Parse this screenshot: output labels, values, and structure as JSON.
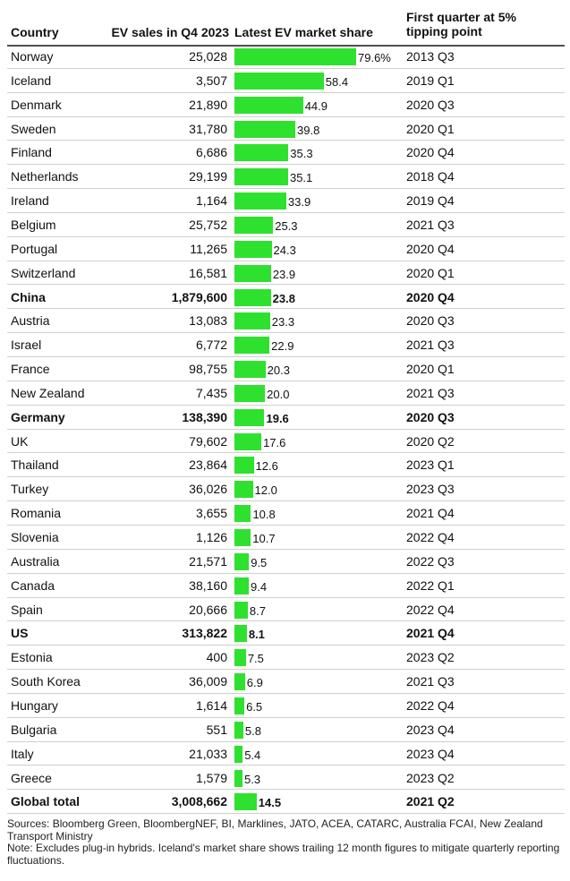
{
  "header": {
    "country": "Country",
    "sales": "EV sales in Q4 2023",
    "share": "Latest EV market share",
    "first_quarter": "First quarter at 5% tipping point"
  },
  "chart_data": {
    "type": "table",
    "bar_color": "#2ee12e",
    "share_max": 79.6,
    "columns": [
      "Country",
      "EV sales in Q4 2023",
      "Latest EV market share",
      "First quarter at 5% tipping point"
    ],
    "rows": [
      {
        "country": "Norway",
        "sales": "25,028",
        "share": 79.6,
        "share_label": "79.6%",
        "first": "2013 Q3",
        "bold": false
      },
      {
        "country": "Iceland",
        "sales": "3,507",
        "share": 58.4,
        "share_label": "58.4",
        "first": "2019 Q1",
        "bold": false
      },
      {
        "country": "Denmark",
        "sales": "21,890",
        "share": 44.9,
        "share_label": "44.9",
        "first": "2020 Q3",
        "bold": false
      },
      {
        "country": "Sweden",
        "sales": "31,780",
        "share": 39.8,
        "share_label": "39.8",
        "first": "2020 Q1",
        "bold": false
      },
      {
        "country": "Finland",
        "sales": "6,686",
        "share": 35.3,
        "share_label": "35.3",
        "first": "2020 Q4",
        "bold": false
      },
      {
        "country": "Netherlands",
        "sales": "29,199",
        "share": 35.1,
        "share_label": "35.1",
        "first": "2018 Q4",
        "bold": false
      },
      {
        "country": "Ireland",
        "sales": "1,164",
        "share": 33.9,
        "share_label": "33.9",
        "first": "2019 Q4",
        "bold": false
      },
      {
        "country": "Belgium",
        "sales": "25,752",
        "share": 25.3,
        "share_label": "25.3",
        "first": "2021 Q3",
        "bold": false
      },
      {
        "country": "Portugal",
        "sales": "11,265",
        "share": 24.3,
        "share_label": "24.3",
        "first": "2020 Q4",
        "bold": false
      },
      {
        "country": "Switzerland",
        "sales": "16,581",
        "share": 23.9,
        "share_label": "23.9",
        "first": "2020 Q1",
        "bold": false
      },
      {
        "country": "China",
        "sales": "1,879,600",
        "share": 23.8,
        "share_label": "23.8",
        "first": "2020 Q4",
        "bold": true
      },
      {
        "country": "Austria",
        "sales": "13,083",
        "share": 23.3,
        "share_label": "23.3",
        "first": "2020 Q3",
        "bold": false
      },
      {
        "country": "Israel",
        "sales": "6,772",
        "share": 22.9,
        "share_label": "22.9",
        "first": "2021 Q3",
        "bold": false
      },
      {
        "country": "France",
        "sales": "98,755",
        "share": 20.3,
        "share_label": "20.3",
        "first": "2020 Q1",
        "bold": false
      },
      {
        "country": "New Zealand",
        "sales": "7,435",
        "share": 20.0,
        "share_label": "20.0",
        "first": "2021 Q3",
        "bold": false
      },
      {
        "country": "Germany",
        "sales": "138,390",
        "share": 19.6,
        "share_label": "19.6",
        "first": "2020 Q3",
        "bold": true
      },
      {
        "country": "UK",
        "sales": "79,602",
        "share": 17.6,
        "share_label": "17.6",
        "first": "2020 Q2",
        "bold": false
      },
      {
        "country": "Thailand",
        "sales": "23,864",
        "share": 12.6,
        "share_label": "12.6",
        "first": "2023 Q1",
        "bold": false
      },
      {
        "country": "Turkey",
        "sales": "36,026",
        "share": 12.0,
        "share_label": "12.0",
        "first": "2023 Q3",
        "bold": false
      },
      {
        "country": "Romania",
        "sales": "3,655",
        "share": 10.8,
        "share_label": "10.8",
        "first": "2021 Q4",
        "bold": false
      },
      {
        "country": "Slovenia",
        "sales": "1,126",
        "share": 10.7,
        "share_label": "10.7",
        "first": "2022 Q4",
        "bold": false
      },
      {
        "country": "Australia",
        "sales": "21,571",
        "share": 9.5,
        "share_label": "9.5",
        "first": "2022 Q3",
        "bold": false
      },
      {
        "country": "Canada",
        "sales": "38,160",
        "share": 9.4,
        "share_label": "9.4",
        "first": "2022 Q1",
        "bold": false
      },
      {
        "country": "Spain",
        "sales": "20,666",
        "share": 8.7,
        "share_label": "8.7",
        "first": "2022 Q4",
        "bold": false
      },
      {
        "country": "US",
        "sales": "313,822",
        "share": 8.1,
        "share_label": "8.1",
        "first": "2021 Q4",
        "bold": true
      },
      {
        "country": "Estonia",
        "sales": "400",
        "share": 7.5,
        "share_label": "7.5",
        "first": "2023 Q2",
        "bold": false
      },
      {
        "country": "South Korea",
        "sales": "36,009",
        "share": 6.9,
        "share_label": "6.9",
        "first": "2021 Q3",
        "bold": false
      },
      {
        "country": "Hungary",
        "sales": "1,614",
        "share": 6.5,
        "share_label": "6.5",
        "first": "2022 Q4",
        "bold": false
      },
      {
        "country": "Bulgaria",
        "sales": "551",
        "share": 5.8,
        "share_label": "5.8",
        "first": "2023 Q4",
        "bold": false
      },
      {
        "country": "Italy",
        "sales": "21,033",
        "share": 5.4,
        "share_label": "5.4",
        "first": "2023 Q4",
        "bold": false
      },
      {
        "country": "Greece",
        "sales": "1,579",
        "share": 5.3,
        "share_label": "5.3",
        "first": "2023 Q2",
        "bold": false
      },
      {
        "country": "Global total",
        "sales": "3,008,662",
        "share": 14.5,
        "share_label": "14.5",
        "first": "2021 Q2",
        "bold": true
      }
    ]
  },
  "notes": {
    "sources": "Sources: Bloomberg Green, BloombergNEF, BI, Marklines, JATO, ACEA, CATARC, Australia FCAI, New Zealand Transport Ministry",
    "note": "Note: Excludes plug-in hybrids. Iceland's market share shows trailing 12 month figures to mitigate quarterly reporting fluctuations."
  }
}
